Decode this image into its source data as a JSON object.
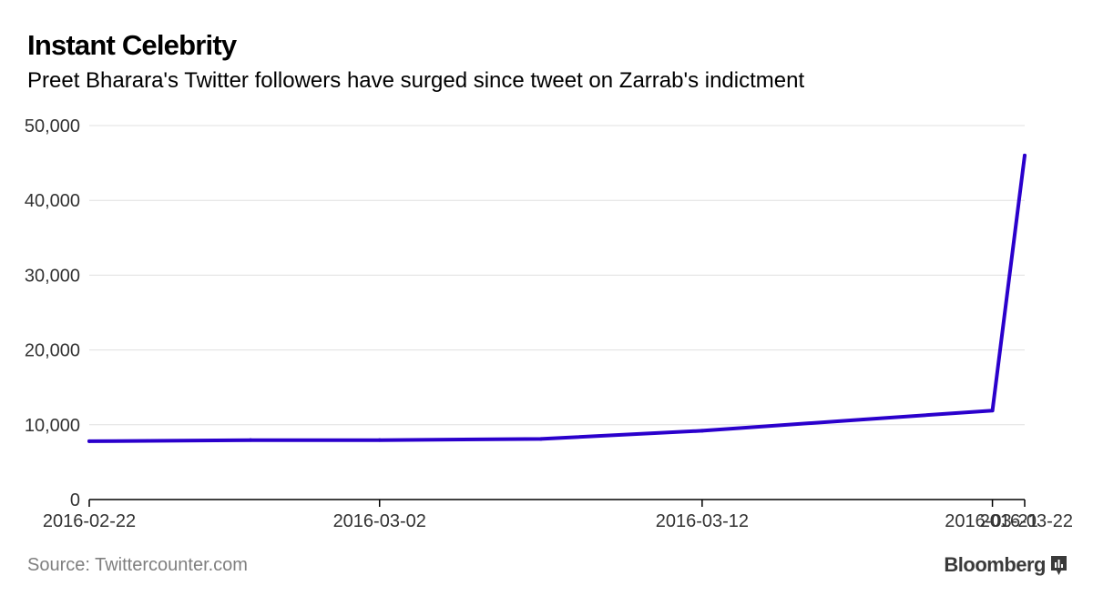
{
  "header": {
    "title": "Instant Celebrity",
    "subtitle": "Preet Bharara's Twitter followers have surged since tweet on Zarrab's indictment"
  },
  "footer": {
    "source": "Source: Twittercounter.com",
    "brand": "Bloomberg",
    "brand_icon": "bloomberg-logo-icon"
  },
  "colors": {
    "line": "#2a00cc",
    "grid": "#e0e0e0",
    "axis": "#000000",
    "tick_text": "#333333"
  },
  "chart_data": {
    "type": "line",
    "title": "Instant Celebrity",
    "subtitle": "Preet Bharara's Twitter followers have surged since tweet on Zarrab's indictment",
    "xlabel": "",
    "ylabel": "",
    "x_ticks": [
      "2016-02-22",
      "2016-03-02",
      "2016-03-12",
      "2016-03-21",
      "2016-03-22"
    ],
    "y_ticks": [
      "0",
      "10,000",
      "20,000",
      "30,000",
      "40,000",
      "50,000"
    ],
    "ylim": [
      0,
      50000
    ],
    "xlim": [
      "2016-02-22",
      "2016-03-22"
    ],
    "grid": true,
    "series": [
      {
        "points": [
          {
            "x": "2016-02-22",
            "y": 7800
          },
          {
            "x": "2016-02-27",
            "y": 7950
          },
          {
            "x": "2016-03-02",
            "y": 7950
          },
          {
            "x": "2016-03-07",
            "y": 8100
          },
          {
            "x": "2016-03-12",
            "y": 9200
          },
          {
            "x": "2016-03-17",
            "y": 10700
          },
          {
            "x": "2016-03-21",
            "y": 11900
          },
          {
            "x": "2016-03-22",
            "y": 46000
          }
        ]
      }
    ]
  }
}
